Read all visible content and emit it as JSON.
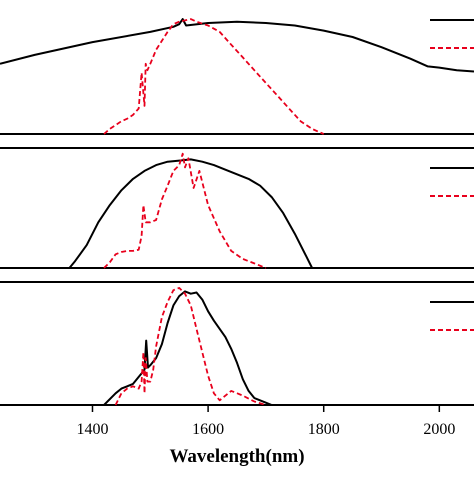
{
  "chart_data": [
    {
      "type": "line",
      "xlabel": "",
      "xlim": [
        1240,
        2060
      ],
      "ylim": [
        0,
        1.05
      ],
      "legend": "top-right",
      "series": [
        {
          "color": "#000000",
          "dash": "solid",
          "x": [
            1240,
            1300,
            1400,
            1500,
            1540,
            1550,
            1556,
            1562,
            1600,
            1650,
            1700,
            1750,
            1800,
            1850,
            1900,
            1950,
            1980,
            2000,
            2030,
            2060
          ],
          "y": [
            0.55,
            0.62,
            0.72,
            0.8,
            0.84,
            0.86,
            0.9,
            0.85,
            0.87,
            0.88,
            0.87,
            0.85,
            0.81,
            0.76,
            0.68,
            0.59,
            0.53,
            0.52,
            0.5,
            0.49
          ]
        },
        {
          "color": "#e8001c",
          "dash": "dashed",
          "x": [
            1420,
            1430,
            1440,
            1450,
            1460,
            1470,
            1480,
            1485,
            1490,
            1492,
            1495,
            1500,
            1510,
            1520,
            1530,
            1540,
            1550,
            1560,
            1570,
            1580,
            1600,
            1620,
            1640,
            1660,
            1680,
            1700,
            1720,
            1740,
            1760,
            1780,
            1800
          ],
          "y": [
            0.0,
            0.04,
            0.07,
            0.1,
            0.12,
            0.15,
            0.2,
            0.48,
            0.22,
            0.55,
            0.5,
            0.55,
            0.66,
            0.73,
            0.8,
            0.86,
            0.88,
            0.89,
            0.9,
            0.88,
            0.85,
            0.8,
            0.7,
            0.6,
            0.5,
            0.4,
            0.3,
            0.2,
            0.1,
            0.04,
            0.0
          ]
        }
      ]
    },
    {
      "type": "line",
      "xlabel": "",
      "xlim": [
        1240,
        2060
      ],
      "ylim": [
        0,
        1.05
      ],
      "legend": "top-right",
      "series": [
        {
          "color": "#000000",
          "dash": "solid",
          "x": [
            1360,
            1370,
            1390,
            1410,
            1430,
            1450,
            1470,
            1490,
            1510,
            1530,
            1550,
            1570,
            1590,
            1610,
            1630,
            1650,
            1670,
            1690,
            1710,
            1730,
            1750,
            1770,
            1780
          ],
          "y": [
            0.0,
            0.06,
            0.2,
            0.4,
            0.55,
            0.68,
            0.78,
            0.85,
            0.9,
            0.93,
            0.94,
            0.95,
            0.93,
            0.9,
            0.86,
            0.82,
            0.78,
            0.72,
            0.62,
            0.48,
            0.3,
            0.1,
            0.0
          ]
        },
        {
          "color": "#e8001c",
          "dash": "dashed",
          "x": [
            1420,
            1430,
            1440,
            1450,
            1460,
            1470,
            1480,
            1485,
            1488,
            1492,
            1500,
            1510,
            1520,
            1530,
            1540,
            1550,
            1556,
            1560,
            1566,
            1575,
            1585,
            1600,
            1620,
            1640,
            1660,
            1680,
            1700
          ],
          "y": [
            0.0,
            0.05,
            0.12,
            0.14,
            0.15,
            0.15,
            0.16,
            0.28,
            0.55,
            0.4,
            0.4,
            0.42,
            0.6,
            0.72,
            0.85,
            0.9,
            1.0,
            0.88,
            0.96,
            0.7,
            0.85,
            0.55,
            0.32,
            0.15,
            0.08,
            0.04,
            0.0
          ]
        }
      ]
    },
    {
      "type": "line",
      "xlabel": "Wavelength(nm)",
      "xticks": [
        1400,
        1600,
        1800,
        2000
      ],
      "xlim": [
        1240,
        2060
      ],
      "ylim": [
        0,
        1.05
      ],
      "legend": "top-right",
      "series": [
        {
          "color": "#000000",
          "dash": "solid",
          "x": [
            1420,
            1440,
            1450,
            1460,
            1470,
            1480,
            1490,
            1493,
            1496,
            1500,
            1510,
            1520,
            1530,
            1540,
            1550,
            1560,
            1570,
            1580,
            1590,
            1600,
            1610,
            1620,
            1630,
            1640,
            1650,
            1660,
            1670,
            1680,
            1700,
            1710
          ],
          "y": [
            0.0,
            0.1,
            0.14,
            0.16,
            0.18,
            0.24,
            0.3,
            0.55,
            0.32,
            0.34,
            0.4,
            0.52,
            0.7,
            0.85,
            0.93,
            0.97,
            0.95,
            0.96,
            0.9,
            0.8,
            0.72,
            0.65,
            0.58,
            0.48,
            0.36,
            0.22,
            0.12,
            0.06,
            0.02,
            0.0
          ]
        },
        {
          "color": "#e8001c",
          "dash": "dashed",
          "x": [
            1440,
            1450,
            1460,
            1470,
            1480,
            1485,
            1488,
            1490,
            1492,
            1495,
            1500,
            1505,
            1510,
            1520,
            1530,
            1540,
            1550,
            1560,
            1570,
            1580,
            1590,
            1600,
            1610,
            1620,
            1640,
            1660,
            1680,
            1700
          ],
          "y": [
            0.0,
            0.1,
            0.14,
            0.16,
            0.14,
            0.2,
            0.45,
            0.1,
            0.4,
            0.2,
            0.2,
            0.3,
            0.5,
            0.75,
            0.88,
            0.98,
            1.0,
            0.95,
            0.85,
            0.65,
            0.45,
            0.25,
            0.1,
            0.04,
            0.12,
            0.08,
            0.03,
            0.0
          ]
        }
      ]
    }
  ]
}
